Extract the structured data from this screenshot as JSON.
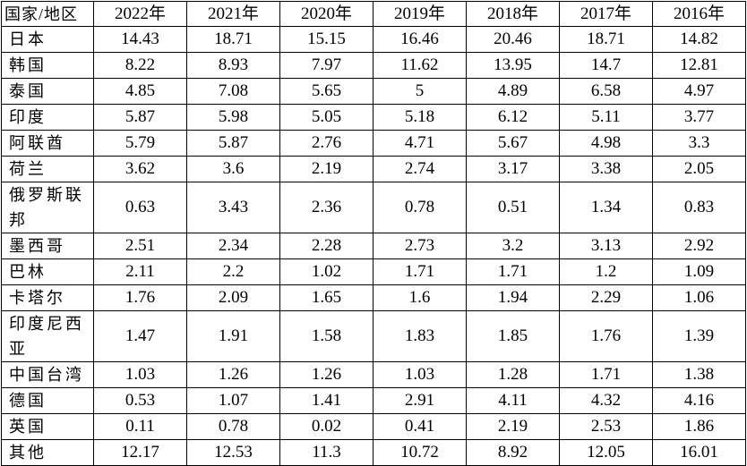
{
  "table": {
    "header": {
      "name": "国家/地区",
      "years": [
        "2022年",
        "2021年",
        "2020年",
        "2019年",
        "2018年",
        "2017年",
        "2016年"
      ]
    },
    "rows": [
      {
        "name": "日本",
        "values": [
          "14.43",
          "18.71",
          "15.15",
          "16.46",
          "20.46",
          "18.71",
          "14.82"
        ]
      },
      {
        "name": "韩国",
        "values": [
          "8.22",
          "8.93",
          "7.97",
          "11.62",
          "13.95",
          "14.7",
          "12.81"
        ]
      },
      {
        "name": "泰国",
        "values": [
          "4.85",
          "7.08",
          "5.65",
          "5",
          "4.89",
          "6.58",
          "4.97"
        ]
      },
      {
        "name": "印度",
        "values": [
          "5.87",
          "5.98",
          "5.05",
          "5.18",
          "6.12",
          "5.11",
          "3.77"
        ]
      },
      {
        "name": "阿联酋",
        "values": [
          "5.79",
          "5.87",
          "2.76",
          "4.71",
          "5.67",
          "4.98",
          "3.3"
        ]
      },
      {
        "name": "荷兰",
        "values": [
          "3.62",
          "3.6",
          "2.19",
          "2.74",
          "3.17",
          "3.38",
          "2.05"
        ]
      },
      {
        "name": "俄罗斯联邦",
        "values": [
          "0.63",
          "3.43",
          "2.36",
          "0.78",
          "0.51",
          "1.34",
          "0.83"
        ]
      },
      {
        "name": "墨西哥",
        "values": [
          "2.51",
          "2.34",
          "2.28",
          "2.73",
          "3.2",
          "3.13",
          "2.92"
        ]
      },
      {
        "name": "巴林",
        "values": [
          "2.11",
          "2.2",
          "1.02",
          "1.71",
          "1.71",
          "1.2",
          "1.09"
        ]
      },
      {
        "name": "卡塔尔",
        "values": [
          "1.76",
          "2.09",
          "1.65",
          "1.6",
          "1.94",
          "2.29",
          "1.06"
        ]
      },
      {
        "name": "印度尼西亚",
        "values": [
          "1.47",
          "1.91",
          "1.58",
          "1.83",
          "1.85",
          "1.76",
          "1.39"
        ]
      },
      {
        "name": "中国台湾",
        "values": [
          "1.03",
          "1.26",
          "1.26",
          "1.03",
          "1.28",
          "1.71",
          "1.38"
        ]
      },
      {
        "name": "德国",
        "values": [
          "0.53",
          "1.07",
          "1.41",
          "2.91",
          "4.11",
          "4.32",
          "4.16"
        ]
      },
      {
        "name": "英国",
        "values": [
          "0.11",
          "0.78",
          "0.02",
          "0.41",
          "2.19",
          "2.53",
          "1.86"
        ]
      },
      {
        "name": "其他",
        "values": [
          "12.17",
          "12.53",
          "11.3",
          "10.72",
          "8.92",
          "12.05",
          "16.01"
        ]
      }
    ]
  }
}
